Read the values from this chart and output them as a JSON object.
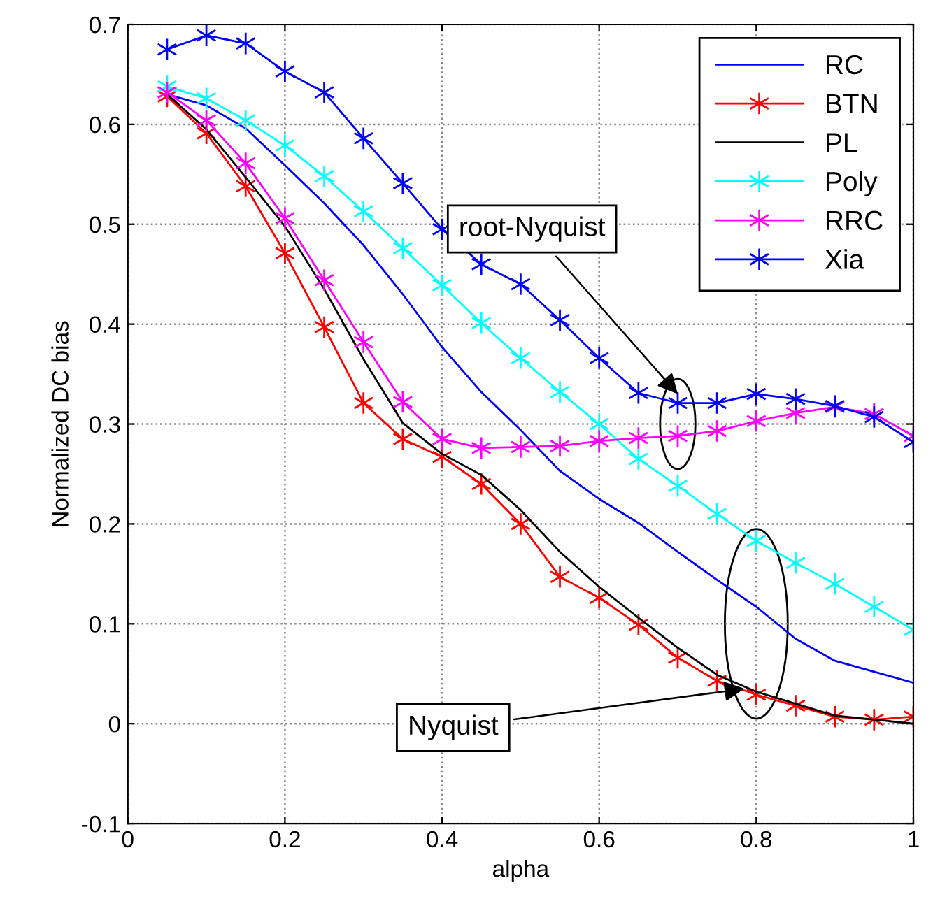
{
  "chart_data": {
    "type": "line",
    "xlabel": "alpha",
    "ylabel": "Normalized DC bias",
    "x": [
      0.05,
      0.1,
      0.15,
      0.2,
      0.25,
      0.3,
      0.35,
      0.4,
      0.45,
      0.5,
      0.55,
      0.6,
      0.65,
      0.7,
      0.75,
      0.8,
      0.85,
      0.9,
      0.95,
      1.0
    ],
    "series": [
      {
        "name": "RC",
        "color": "#0000ff",
        "marker": "none",
        "values": [
          0.63,
          0.619,
          0.596,
          0.559,
          0.521,
          0.479,
          0.43,
          0.377,
          0.332,
          0.294,
          0.253,
          0.225,
          0.201,
          0.172,
          0.144,
          0.117,
          0.085,
          0.063,
          0.052,
          0.041
        ]
      },
      {
        "name": "BTN",
        "color": "#ff0000",
        "marker": "cross",
        "values": [
          0.628,
          0.591,
          0.538,
          0.471,
          0.397,
          0.321,
          0.285,
          0.267,
          0.24,
          0.2,
          0.147,
          0.126,
          0.099,
          0.066,
          0.043,
          0.029,
          0.018,
          0.007,
          0.004,
          0.007
        ]
      },
      {
        "name": "PL",
        "color": "#000000",
        "marker": "none",
        "values": [
          0.63,
          0.595,
          0.547,
          0.498,
          0.435,
          0.365,
          0.301,
          0.27,
          0.249,
          0.214,
          0.172,
          0.137,
          0.106,
          0.076,
          0.049,
          0.032,
          0.02,
          0.008,
          0.004,
          0.0
        ]
      },
      {
        "name": "Poly",
        "color": "#00ffff",
        "marker": "cross",
        "values": [
          0.638,
          0.626,
          0.604,
          0.579,
          0.548,
          0.513,
          0.476,
          0.439,
          0.401,
          0.366,
          0.332,
          0.3,
          0.265,
          0.238,
          0.21,
          0.183,
          0.161,
          0.14,
          0.117,
          0.094
        ]
      },
      {
        "name": "RRC",
        "color": "#ff00ff",
        "marker": "cross",
        "values": [
          0.632,
          0.604,
          0.561,
          0.506,
          0.444,
          0.382,
          0.322,
          0.285,
          0.276,
          0.277,
          0.278,
          0.283,
          0.286,
          0.288,
          0.293,
          0.303,
          0.311,
          0.317,
          0.31,
          0.288
        ]
      },
      {
        "name": "Xia",
        "color": "#0000ff",
        "marker": "cross",
        "values": [
          0.675,
          0.689,
          0.681,
          0.653,
          0.632,
          0.586,
          0.541,
          0.495,
          0.46,
          0.44,
          0.404,
          0.366,
          0.331,
          0.321,
          0.321,
          0.33,
          0.325,
          0.318,
          0.307,
          0.282
        ]
      }
    ],
    "xlim": [
      0,
      1
    ],
    "xticks": [
      0,
      0.2,
      0.4,
      0.6,
      0.8,
      1
    ],
    "ylim": [
      -0.1,
      0.7
    ],
    "yticks": [
      -0.1,
      0,
      0.1,
      0.2,
      0.3,
      0.4,
      0.5,
      0.6,
      0.7
    ],
    "annotations": [
      {
        "text": "root-Nyquist",
        "x": 0.7,
        "y": 0.33
      },
      {
        "text": "Nyquist",
        "x": 0.785,
        "y": 0.035
      }
    ],
    "grid": true,
    "legend": "top right",
    "line_style": "solid"
  }
}
